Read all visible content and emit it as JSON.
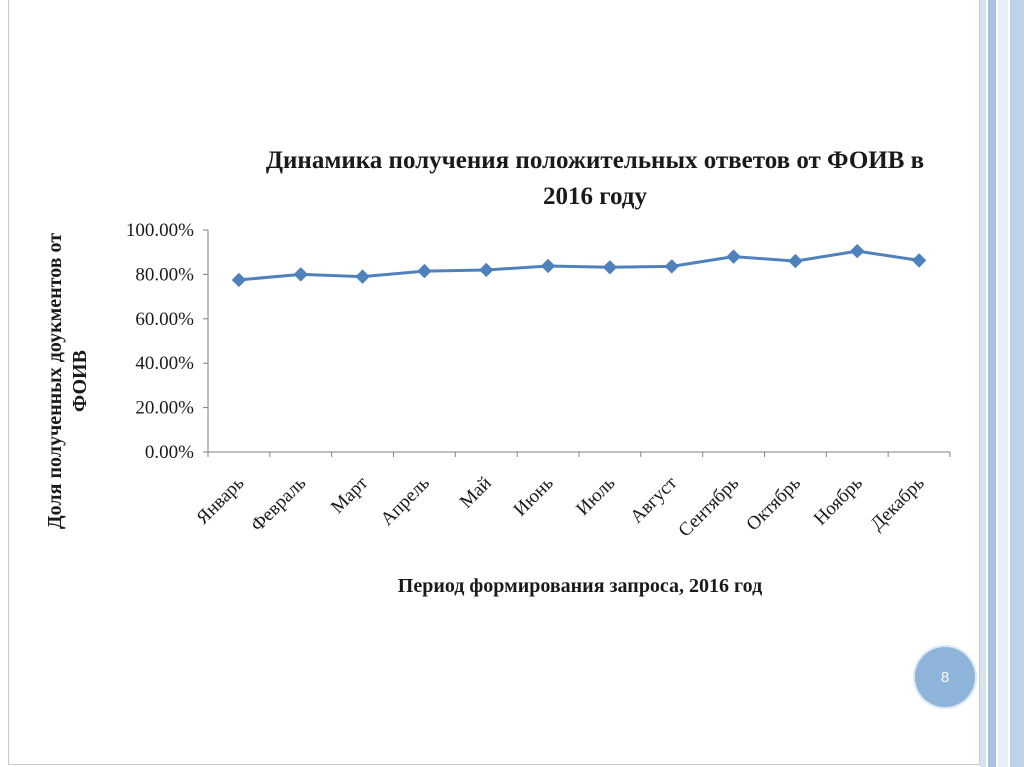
{
  "slide": {
    "page_number": "8"
  },
  "chart_data": {
    "type": "line",
    "title_lines": [
      "Динамика получения положительных ответов от ФОИВ в",
      "2016 году"
    ],
    "xlabel": "Период формирования запроса, 2016 год",
    "ylabel_lines": [
      "Доля полученных доукментов от",
      "ФОИВ"
    ],
    "categories": [
      "Январь",
      "Февраль",
      "Март",
      "Апрель",
      "Май",
      "Июнь",
      "Июль",
      "Август",
      "Сентябрь",
      "Октябрь",
      "Ноябрь",
      "Декабрь"
    ],
    "series": [
      {
        "values": [
          0.775,
          0.8,
          0.79,
          0.815,
          0.82,
          0.838,
          0.832,
          0.836,
          0.88,
          0.86,
          0.905,
          0.863
        ]
      }
    ],
    "ylim": [
      0,
      1
    ],
    "yticks": [
      1.0,
      0.8,
      0.6,
      0.4,
      0.2,
      0.0
    ],
    "ytick_labels": [
      "100.00%",
      "80.00%",
      "60.00%",
      "40.00%",
      "20.00%",
      "0.00%"
    ],
    "grid": false,
    "legend": "none",
    "colors": {
      "series": "#4f81bd",
      "axis": "#808080",
      "text": "#1a1a1a"
    }
  },
  "theme": {
    "badge_color": "#8fb4d9",
    "stripe_colors": [
      "#d6e3f0",
      "#a9c4de",
      "#e8eff7",
      "#bfd3e8"
    ]
  }
}
